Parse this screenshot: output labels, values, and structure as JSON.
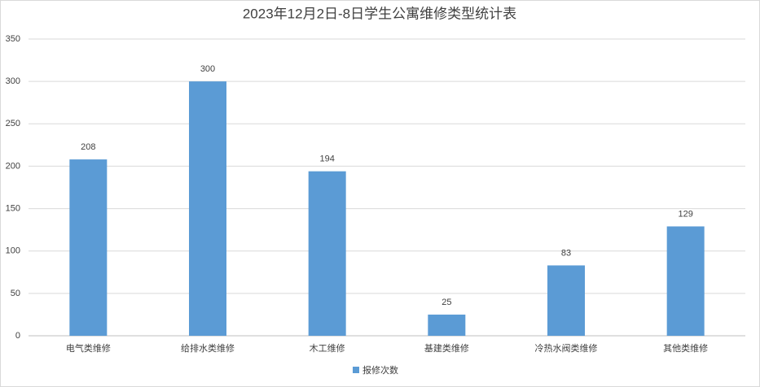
{
  "chart_data": {
    "type": "bar",
    "title": "2023年12月2日-8日学生公寓维修类型统计表",
    "categories": [
      "电气类维修",
      "给排水类维修",
      "木工维修",
      "基建类维修",
      "冷热水阀类维修",
      "其他类维修"
    ],
    "series": [
      {
        "name": "报修次数",
        "color": "#5b9bd5",
        "values": [
          208,
          300,
          194,
          25,
          83,
          129
        ]
      }
    ],
    "ylim": [
      0,
      350
    ],
    "yticks": [
      0,
      50,
      100,
      150,
      200,
      250,
      300,
      350
    ],
    "grid": true,
    "legend": "bottom",
    "data_labels": true
  }
}
